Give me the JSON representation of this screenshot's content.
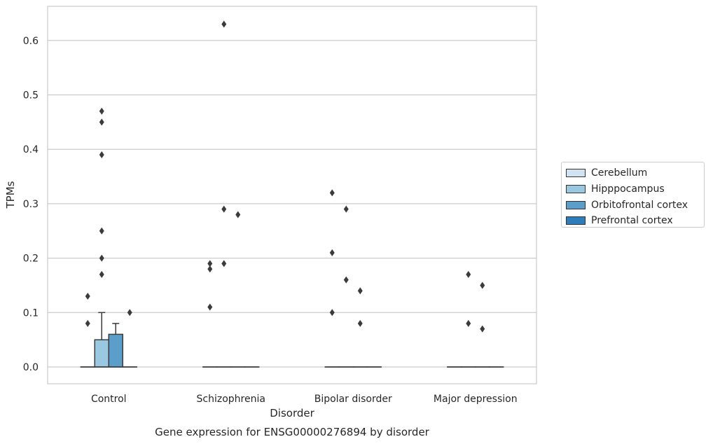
{
  "chart_data": {
    "type": "box",
    "caption": "Gene expression for ENSG00000276894 by disorder",
    "xlabel": "Disorder",
    "ylabel": "TPMs",
    "ylim": [
      -0.03,
      0.66
    ],
    "yticks": [
      "0.0",
      "0.1",
      "0.2",
      "0.3",
      "0.4",
      "0.5",
      "0.6"
    ],
    "ytick_values": [
      0,
      0.1,
      0.2,
      0.3,
      0.4,
      0.5,
      0.6
    ],
    "grid": "horizontal",
    "legend_position": "right",
    "categories": [
      "Control",
      "Schizophrenia",
      "Bipolar disorder",
      "Major depression"
    ],
    "series": [
      {
        "name": "Cerebellum",
        "color": "#d1e2f1",
        "boxes": [
          {
            "q1": 0,
            "median": 0,
            "q3": 0,
            "whisker_low": 0,
            "whisker_high": 0,
            "outliers": [
              0.08,
              0.13
            ]
          },
          {
            "q1": 0,
            "median": 0,
            "q3": 0,
            "whisker_low": 0,
            "whisker_high": 0,
            "outliers": [
              0.11,
              0.18,
              0.19
            ]
          },
          {
            "q1": 0,
            "median": 0,
            "q3": 0,
            "whisker_low": 0,
            "whisker_high": 0,
            "outliers": [
              0.1,
              0.21,
              0.32
            ]
          },
          {
            "q1": 0,
            "median": 0,
            "q3": 0,
            "whisker_low": 0,
            "whisker_high": 0,
            "outliers": []
          }
        ]
      },
      {
        "name": "Hipppocampus",
        "color": "#9ac8e0",
        "boxes": [
          {
            "q1": 0,
            "median": 0,
            "q3": 0.05,
            "whisker_low": 0,
            "whisker_high": 0.1,
            "outliers": [
              0.17,
              0.2,
              0.25,
              0.39,
              0.45,
              0.47
            ]
          },
          {
            "q1": 0,
            "median": 0,
            "q3": 0,
            "whisker_low": 0,
            "whisker_high": 0,
            "outliers": [
              0.19,
              0.29,
              0.63
            ]
          },
          {
            "q1": 0,
            "median": 0,
            "q3": 0,
            "whisker_low": 0,
            "whisker_high": 0,
            "outliers": [
              0.16,
              0.29
            ]
          },
          {
            "q1": 0,
            "median": 0,
            "q3": 0,
            "whisker_low": 0,
            "whisker_high": 0,
            "outliers": [
              0.08,
              0.17
            ]
          }
        ]
      },
      {
        "name": "Orbitofrontal cortex",
        "color": "#5b9ec9",
        "boxes": [
          {
            "q1": 0,
            "median": 0,
            "q3": 0.06,
            "whisker_low": 0,
            "whisker_high": 0.08,
            "outliers": []
          },
          {
            "q1": 0,
            "median": 0,
            "q3": 0,
            "whisker_low": 0,
            "whisker_high": 0,
            "outliers": [
              0.28
            ]
          },
          {
            "q1": 0,
            "median": 0,
            "q3": 0,
            "whisker_low": 0,
            "whisker_high": 0,
            "outliers": [
              0.08,
              0.14
            ]
          },
          {
            "q1": 0,
            "median": 0,
            "q3": 0,
            "whisker_low": 0,
            "whisker_high": 0,
            "outliers": [
              0.07,
              0.15
            ]
          }
        ]
      },
      {
        "name": "Prefrontal cortex",
        "color": "#2d7dbb",
        "boxes": [
          {
            "q1": 0,
            "median": 0,
            "q3": 0,
            "whisker_low": 0,
            "whisker_high": 0,
            "outliers": [
              0.1
            ]
          },
          {
            "q1": 0,
            "median": 0,
            "q3": 0,
            "whisker_low": 0,
            "whisker_high": 0,
            "outliers": []
          },
          {
            "q1": 0,
            "median": 0,
            "q3": 0,
            "whisker_low": 0,
            "whisker_high": 0,
            "outliers": []
          },
          {
            "q1": 0,
            "median": 0,
            "q3": 0,
            "whisker_low": 0,
            "whisker_high": 0,
            "outliers": []
          }
        ]
      }
    ]
  }
}
